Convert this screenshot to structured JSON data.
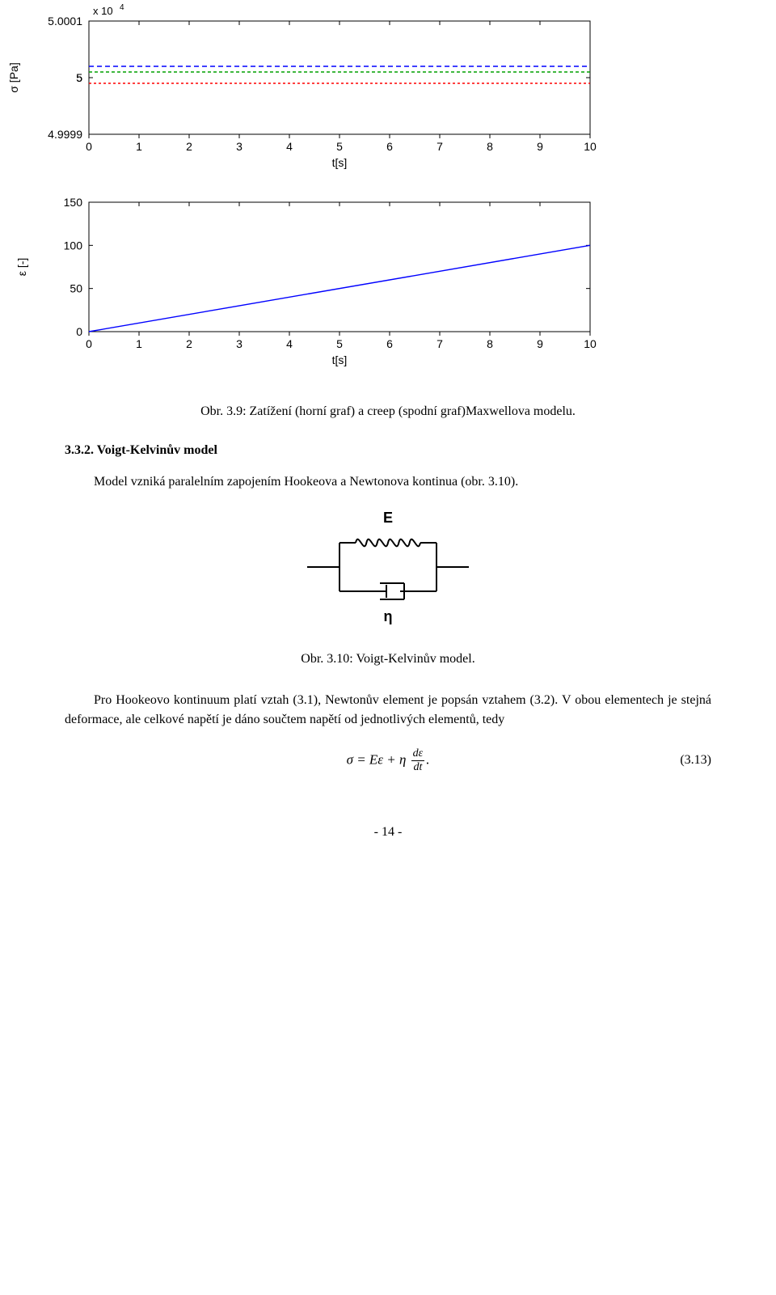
{
  "chart1": {
    "type": "line",
    "ylabel": "σ [Pa]",
    "xlabel": "t[s]",
    "exponent_label": "x 10",
    "exponent_sup": "4",
    "xlim": [
      0,
      10
    ],
    "ylim": [
      4.9999,
      5.0001
    ],
    "xticks": [
      0,
      1,
      2,
      3,
      4,
      5,
      6,
      7,
      8,
      9,
      10
    ],
    "yticks": [
      4.9999,
      5,
      5,
      5,
      5.0001
    ],
    "ytick_labels": [
      "4.9999",
      "5",
      "5",
      "5",
      "5.0001"
    ],
    "series": [
      {
        "color": "#0000ff",
        "dash": "6,4",
        "points": [
          [
            0,
            5.00002
          ],
          [
            10,
            5.00002
          ]
        ]
      },
      {
        "color": "#00a000",
        "dash": "4,3",
        "points": [
          [
            0,
            5.00001
          ],
          [
            10,
            5.00001
          ]
        ]
      },
      {
        "color": "#ff0000",
        "dash": "3,3",
        "points": [
          [
            0,
            4.99999
          ],
          [
            10,
            4.99999
          ]
        ]
      }
    ],
    "axis_fontsize": 14,
    "label_fontsize": 14,
    "background_color": "#ffffff",
    "axis_color": "#000000"
  },
  "chart2": {
    "type": "line",
    "ylabel": "ε [-]",
    "xlabel": "t[s]",
    "xlim": [
      0,
      10
    ],
    "ylim": [
      0,
      150
    ],
    "xticks": [
      0,
      1,
      2,
      3,
      4,
      5,
      6,
      7,
      8,
      9,
      10
    ],
    "yticks": [
      0,
      50,
      100,
      150
    ],
    "series": [
      {
        "color": "#0000ff",
        "dash": null,
        "points": [
          [
            0,
            0
          ],
          [
            10,
            100
          ]
        ]
      }
    ],
    "axis_fontsize": 14,
    "label_fontsize": 14,
    "background_color": "#ffffff",
    "axis_color": "#000000"
  },
  "fig_caption_1": "Obr. 3.9: Zatížení (horní graf) a creep (spodní graf)Maxwellova modelu.",
  "section_heading": "3.3.2.  Voigt-Kelvinův model",
  "para1_a": "Model vzniká paralelním zapojením Hookeova a Newtonova kontinua (obr. 3.10).",
  "diagram": {
    "top_label": "E",
    "bottom_label": "η",
    "line_color": "#000000",
    "line_width": 2
  },
  "fig_caption_2": "Obr. 3.10: Voigt-Kelvinův model.",
  "para2": "Pro Hookeovo kontinuum platí vztah (3.1), Newtonův element je popsán vztahem (3.2). V obou elementech je stejná deformace, ale celkové napětí je dáno součtem napětí od jednotlivých elementů, tedy",
  "equation": {
    "lhs": "σ = Eε +  η",
    "frac_num": "dε",
    "frac_den": "dt",
    "tail": ".",
    "number": "(3.13)"
  },
  "page_number": "- 14 -"
}
